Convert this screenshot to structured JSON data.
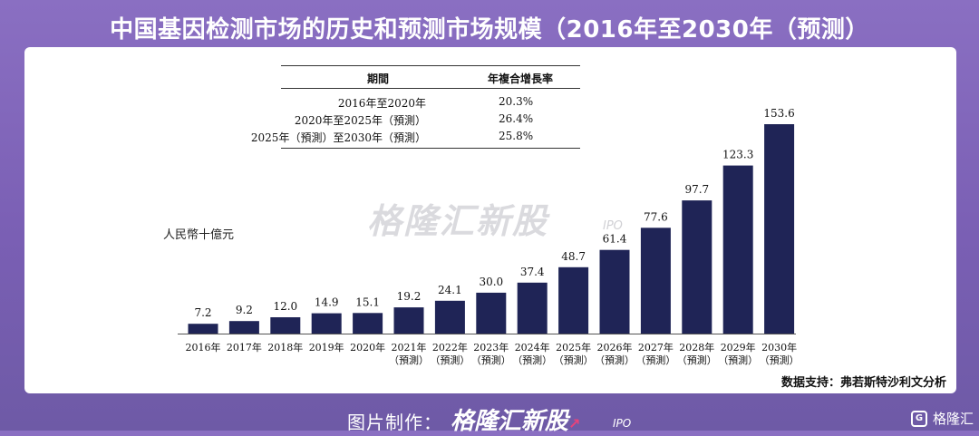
{
  "page_title": "中国基因检测市场的历史和预测市场规模（2016年至2030年（预测）",
  "watermark": {
    "brand": "格隆汇新股",
    "suffix": "IPO"
  },
  "cagr_table": {
    "headers": [
      "期間",
      "年複合增長率"
    ],
    "rows": [
      {
        "period": "2016年至2020年",
        "rate": "20.3%"
      },
      {
        "period": "2020年至2025年（預測）",
        "rate": "26.4%"
      },
      {
        "period": "2025年（預測）至2030年（預測）",
        "rate": "25.8%"
      }
    ]
  },
  "source": "数据支持：弗若斯特沙利文分析",
  "footer": {
    "label": "图片制作：",
    "brand": "格隆汇新股",
    "suffix": "IPO"
  },
  "corner_logo": {
    "text": "格隆汇",
    "icon": "g-logo-icon"
  },
  "colors": {
    "bar": "#1f2456",
    "background": "#7d63b8"
  },
  "chart_data": {
    "type": "bar",
    "title": "",
    "ylabel": "人民幣十億元",
    "xlabel": "",
    "ylim": [
      0,
      160
    ],
    "grid": false,
    "categories": [
      {
        "year": "2016年",
        "note": ""
      },
      {
        "year": "2017年",
        "note": ""
      },
      {
        "year": "2018年",
        "note": ""
      },
      {
        "year": "2019年",
        "note": ""
      },
      {
        "year": "2020年",
        "note": ""
      },
      {
        "year": "2021年",
        "note": "（預測）"
      },
      {
        "year": "2022年",
        "note": "（預測）"
      },
      {
        "year": "2023年",
        "note": "（預測）"
      },
      {
        "year": "2024年",
        "note": "（預測）"
      },
      {
        "year": "2025年",
        "note": "（預測）"
      },
      {
        "year": "2026年",
        "note": "（預測）"
      },
      {
        "year": "2027年",
        "note": "（預測）"
      },
      {
        "year": "2028年",
        "note": "（預測）"
      },
      {
        "year": "2029年",
        "note": "（預測）"
      },
      {
        "year": "2030年",
        "note": "（預測）"
      }
    ],
    "values": [
      7.2,
      9.2,
      12.0,
      14.9,
      15.1,
      19.2,
      24.1,
      30.0,
      37.4,
      48.7,
      61.4,
      77.6,
      97.7,
      123.3,
      153.6
    ],
    "value_labels": [
      "7.2",
      "9.2",
      "12.0",
      "14.9",
      "15.1",
      "19.2",
      "24.1",
      "30.0",
      "37.4",
      "48.7",
      "61.4",
      "77.6",
      "97.7",
      "123.3",
      "153.6"
    ]
  }
}
